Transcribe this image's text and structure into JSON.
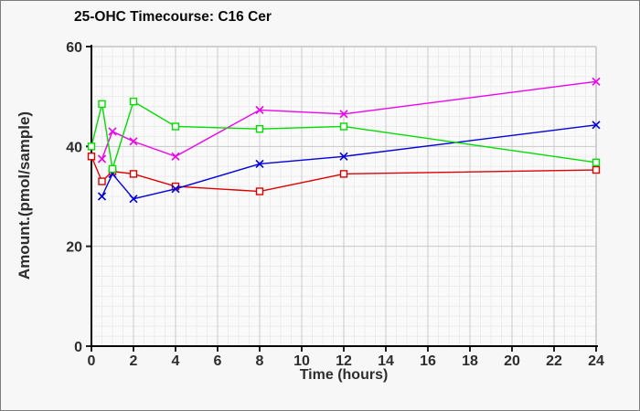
{
  "chart_data": {
    "type": "line",
    "title": "25-OHC Timecourse: C16 Cer",
    "xlabel": "Time (hours)",
    "ylabel": "Amount.(pmol/sample)",
    "xlim": [
      0,
      24
    ],
    "ylim": [
      0,
      60
    ],
    "xticks": [
      0,
      2,
      4,
      6,
      8,
      10,
      12,
      14,
      16,
      18,
      20,
      22,
      24
    ],
    "yticks": [
      0,
      20,
      40,
      60
    ],
    "x_minor_step": 0.5,
    "y_minor_step": 2,
    "grid": true,
    "legend": "none",
    "series": [
      {
        "name": "red-squares",
        "color": "#dd0000",
        "marker": "square",
        "x": [
          0,
          0.5,
          1,
          2,
          4,
          8,
          12,
          24
        ],
        "y": [
          38,
          33,
          35,
          34.5,
          32,
          31,
          34.5,
          35.3
        ]
      },
      {
        "name": "blue-x",
        "color": "#0000dd",
        "marker": "x",
        "x": [
          0.5,
          1,
          2,
          4,
          8,
          12,
          24
        ],
        "y": [
          30,
          34.5,
          29.5,
          31.5,
          36.5,
          38,
          44.3
        ]
      },
      {
        "name": "magenta-x",
        "color": "#ee00ee",
        "marker": "x",
        "x": [
          0.5,
          1,
          2,
          4,
          8,
          12,
          24
        ],
        "y": [
          37.5,
          43,
          41,
          38,
          47.3,
          46.5,
          53
        ]
      },
      {
        "name": "green-squares",
        "color": "#00dd00",
        "marker": "square",
        "x": [
          0,
          0.5,
          1,
          2,
          4,
          8,
          12,
          24
        ],
        "y": [
          40,
          48.5,
          35.5,
          49,
          44,
          43.5,
          44,
          36.8
        ]
      }
    ],
    "colors": {
      "axis": "#000000",
      "grid_major": "#c9c9c9",
      "grid_minor": "#ececec",
      "plot_bg": "#fafafa",
      "tick_text": "#2e2e2e",
      "plot_border": "#c4c4c4"
    }
  }
}
